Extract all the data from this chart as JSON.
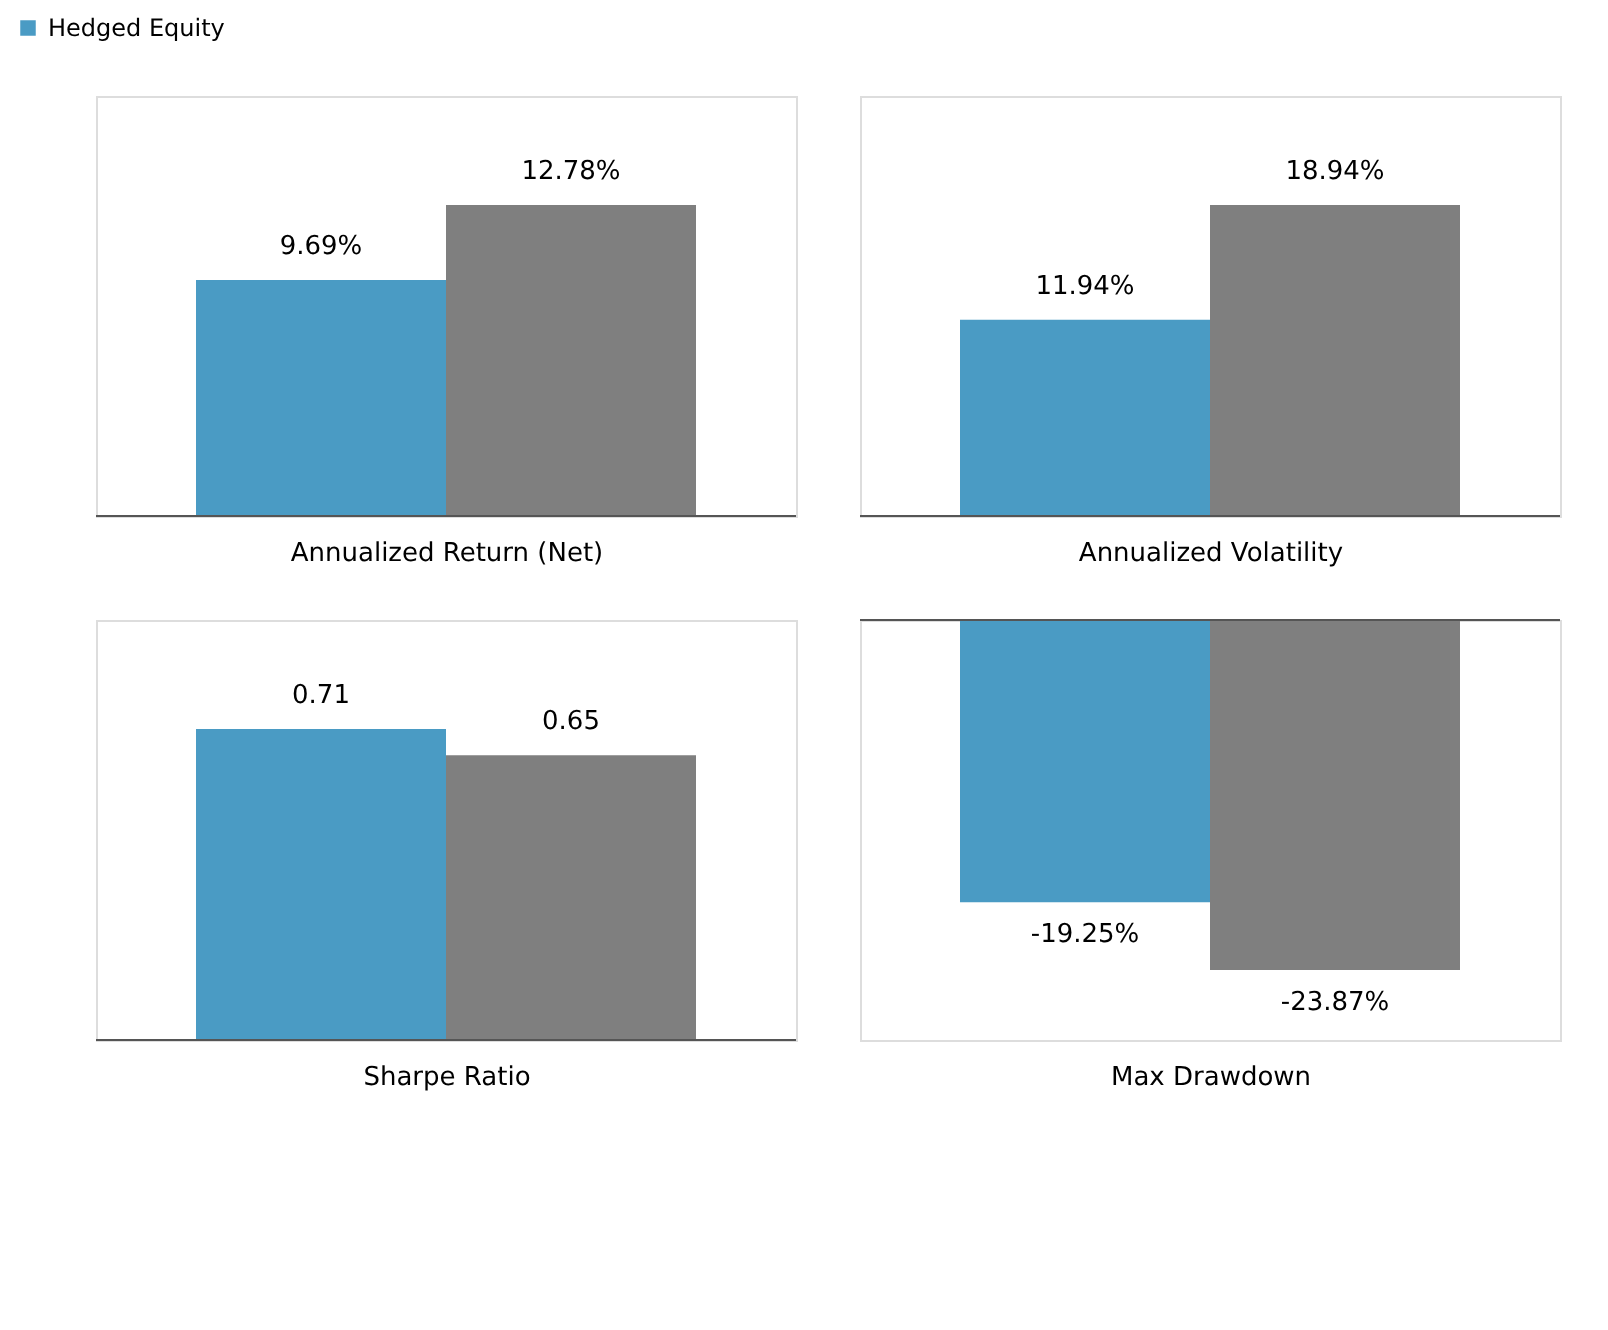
{
  "chart_data": [
    {
      "type": "bar",
      "xlabel": "Annualized Return (Net)",
      "categories": [
        null
      ],
      "legend": "top left",
      "tick_labels": false,
      "series": [
        {
          "name": "Hedged Equity",
          "color": "#4a9bc4",
          "values": [
            9.69
          ],
          "value_labels": [
            "9.69%"
          ]
        },
        {
          "color": "#7f7f7f",
          "values": [
            12.78
          ],
          "value_labels": [
            "12.78%"
          ]
        }
      ]
    },
    {
      "type": "bar",
      "xlabel": "Annualized Volatility",
      "categories": [
        null
      ],
      "tick_labels": false,
      "series": [
        {
          "color": "#4a9bc4",
          "values": [
            11.94
          ],
          "value_labels": [
            "11.94%"
          ]
        },
        {
          "color": "#7f7f7f",
          "values": [
            18.94
          ],
          "value_labels": [
            "18.94%"
          ]
        }
      ]
    },
    {
      "type": "bar",
      "xlabel": "Sharpe Ratio",
      "categories": [
        null
      ],
      "tick_labels": false,
      "series": [
        {
          "color": "#4a9bc4",
          "values": [
            0.71
          ],
          "value_labels": [
            "0.71"
          ]
        },
        {
          "color": "#7f7f7f",
          "values": [
            0.65
          ],
          "value_labels": [
            "0.65"
          ]
        }
      ]
    },
    {
      "type": "bar",
      "xlabel": "Max Drawdown",
      "categories": [
        null
      ],
      "tick_labels": false,
      "series": [
        {
          "color": "#4a9bc4",
          "values": [
            -19.25
          ],
          "value_labels": [
            "-19.25%"
          ]
        },
        {
          "color": "#7f7f7f",
          "values": [
            -23.87
          ],
          "value_labels": [
            "-23.87%"
          ]
        }
      ]
    }
  ]
}
